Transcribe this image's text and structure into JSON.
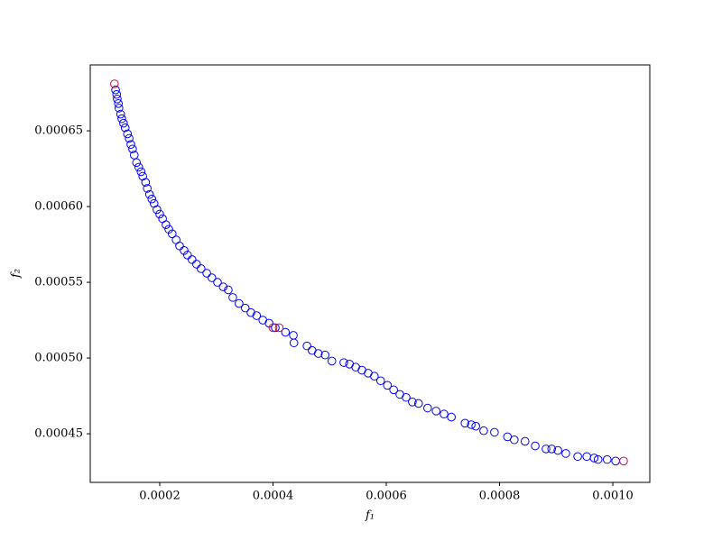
{
  "chart_data": {
    "type": "scatter",
    "xlabel": "f₁",
    "ylabel": "f₂",
    "xlim": [
      7.73e-05,
      0.0010653
    ],
    "ylim": [
      0.0004179,
      0.0006935
    ],
    "xticks": [
      0.0002,
      0.0004,
      0.0006,
      0.0008,
      {
        "value": 0.001,
        "label": "0.0010"
      }
    ],
    "yticks": [
      0.00045,
      {
        "value": 0.0005,
        "label": "0.00050"
      },
      0.00055,
      {
        "value": 0.0006,
        "label": "0.00060"
      },
      0.00065
    ],
    "grid": false,
    "series": [
      {
        "color": "#0000ff",
        "x": [
          0.000122,
          0.000124,
          0.000125,
          0.000127,
          0.000128,
          0.000131,
          0.000133,
          0.000136,
          0.000139,
          0.000143,
          0.000146,
          0.000149,
          0.000152,
          0.000155,
          0.000159,
          0.000163,
          0.000167,
          0.00017,
          0.000175,
          0.000178,
          0.000182,
          0.000186,
          0.00019,
          0.000195,
          0.0002,
          0.000205,
          0.000211,
          0.000216,
          0.000222,
          0.000229,
          0.000235,
          0.000243,
          0.000249,
          0.000257,
          0.000265,
          0.000273,
          0.000283,
          0.000292,
          0.000302,
          0.000312,
          0.000321,
          0.000329,
          0.00034,
          0.000351,
          0.000361,
          0.000371,
          0.000382,
          0.000393,
          0.000404,
          0.000422,
          0.000436,
          0.000437,
          0.00046,
          0.000469,
          0.00048,
          0.000492,
          0.000504,
          0.000525,
          0.000535,
          0.000546,
          0.000557,
          0.000568,
          0.000579,
          0.00059,
          0.000602,
          0.000613,
          0.000624,
          0.000635,
          0.000646,
          0.000657,
          0.000673,
          0.000688,
          0.000702,
          0.000715,
          0.000739,
          0.00075,
          0.000758,
          0.000772,
          0.000791,
          0.000814,
          0.000826,
          0.000845,
          0.000863,
          0.000882,
          0.000892,
          0.000903,
          0.000917,
          0.000938,
          0.000954,
          0.000967,
          0.000974,
          0.00099,
          0.001005
        ],
        "values": [
          0.000677,
          0.000674,
          0.000671,
          0.000668,
          0.000665,
          0.000661,
          0.000658,
          0.000655,
          0.000652,
          0.000648,
          0.000645,
          0.000641,
          0.000638,
          0.000634,
          0.000629,
          0.000626,
          0.000623,
          0.00062,
          0.000616,
          0.000612,
          0.000608,
          0.000605,
          0.000602,
          0.000598,
          0.000595,
          0.000592,
          0.000588,
          0.000585,
          0.000582,
          0.000578,
          0.000574,
          0.000571,
          0.000568,
          0.000565,
          0.000562,
          0.000559,
          0.000556,
          0.000553,
          0.00055,
          0.000547,
          0.000545,
          0.00054,
          0.000536,
          0.000533,
          0.00053,
          0.000528,
          0.000525,
          0.000523,
          0.00052,
          0.000517,
          0.000515,
          0.00051,
          0.000508,
          0.000505,
          0.000503,
          0.000502,
          0.000498,
          0.000497,
          0.000496,
          0.000494,
          0.000492,
          0.00049,
          0.000488,
          0.000485,
          0.000482,
          0.000479,
          0.000476,
          0.000474,
          0.000471,
          0.00047,
          0.000467,
          0.000465,
          0.000463,
          0.000461,
          0.000457,
          0.000456,
          0.000455,
          0.000452,
          0.000451,
          0.000448,
          0.000446,
          0.000445,
          0.000442,
          0.00044,
          0.00044,
          0.000439,
          0.000437,
          0.000435,
          0.000435,
          0.000434,
          0.000433,
          0.000433,
          0.000432
        ]
      },
      {
        "color": "#cc1035",
        "x": [
          0.00012,
          0.0004,
          0.000411,
          0.001019
        ],
        "values": [
          0.000681,
          0.00052,
          0.00052,
          0.000432
        ]
      }
    ]
  }
}
